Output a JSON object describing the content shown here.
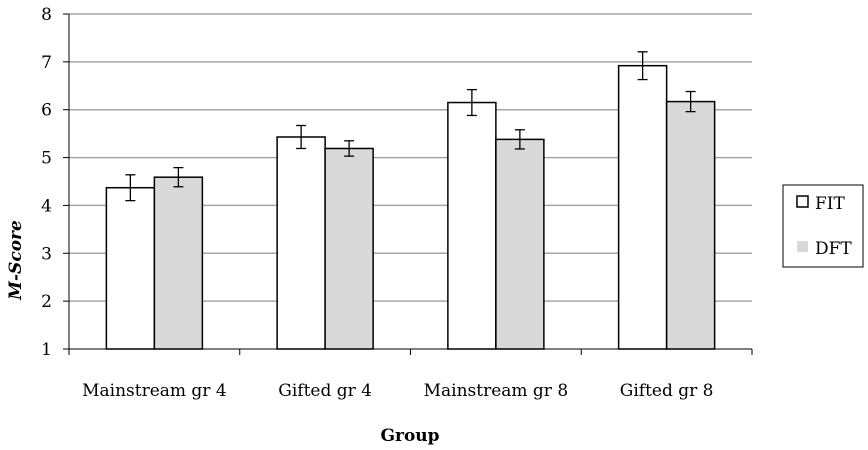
{
  "chart_data": {
    "type": "bar",
    "categories": [
      "Mainstream gr 4",
      "Gifted gr 4",
      "Mainstream gr 8",
      "Gifted gr 8"
    ],
    "series": [
      {
        "name": "FIT",
        "values": [
          4.37,
          5.43,
          6.15,
          6.92
        ],
        "error": [
          0.27,
          0.24,
          0.27,
          0.29
        ],
        "color": "#ffffff",
        "stroke": "#000000"
      },
      {
        "name": "DFT",
        "values": [
          4.59,
          5.19,
          5.38,
          6.17
        ],
        "error": [
          0.2,
          0.16,
          0.2,
          0.21
        ],
        "color": "#d9d9d9",
        "stroke": "#000000"
      }
    ],
    "title": "",
    "xlabel": "Group",
    "ylabel": "M-Score",
    "ylim": [
      1,
      8
    ],
    "yticks": [
      "1",
      "2",
      "3",
      "4",
      "5",
      "6",
      "7",
      "8"
    ],
    "grid": true,
    "gridColor": "#a6a6a6",
    "legend": "right"
  }
}
